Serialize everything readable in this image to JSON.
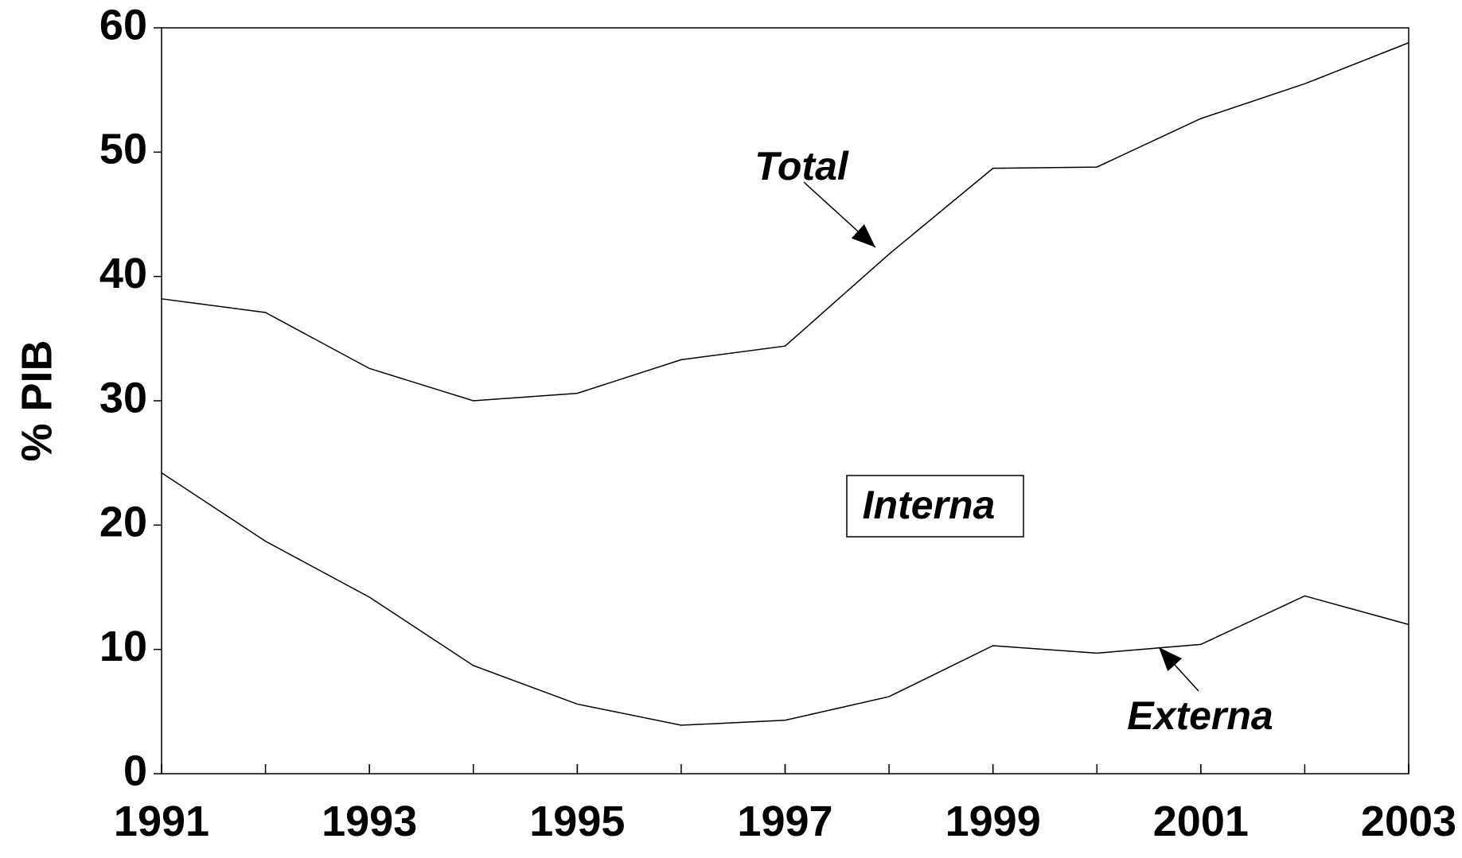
{
  "chart_data": {
    "type": "line",
    "y_label": "% PIB",
    "x": [
      1991,
      1992,
      1993,
      1994,
      1995,
      1996,
      1997,
      1998,
      1999,
      2000,
      2001,
      2002,
      2003
    ],
    "series": [
      {
        "name": "Total",
        "color": "#000000",
        "values": [
          38.2,
          37.1,
          32.6,
          30.0,
          30.6,
          33.3,
          34.4,
          41.8,
          48.7,
          48.8,
          52.7,
          55.5,
          58.8
        ]
      },
      {
        "name": "Externa",
        "color": "#000000",
        "values": [
          24.2,
          18.7,
          14.2,
          8.7,
          5.6,
          3.9,
          4.3,
          6.2,
          10.3,
          9.7,
          10.4,
          14.3,
          12.0
        ]
      }
    ],
    "annotations": [
      "Total",
      "Interna",
      "Externa"
    ],
    "xlim": [
      1991,
      2003
    ],
    "xticks": [
      1991,
      1993,
      1995,
      1997,
      1999,
      2001,
      2003
    ],
    "ylim": [
      0,
      60
    ],
    "yticks": [
      0,
      10,
      20,
      30,
      40,
      50,
      60
    ]
  }
}
